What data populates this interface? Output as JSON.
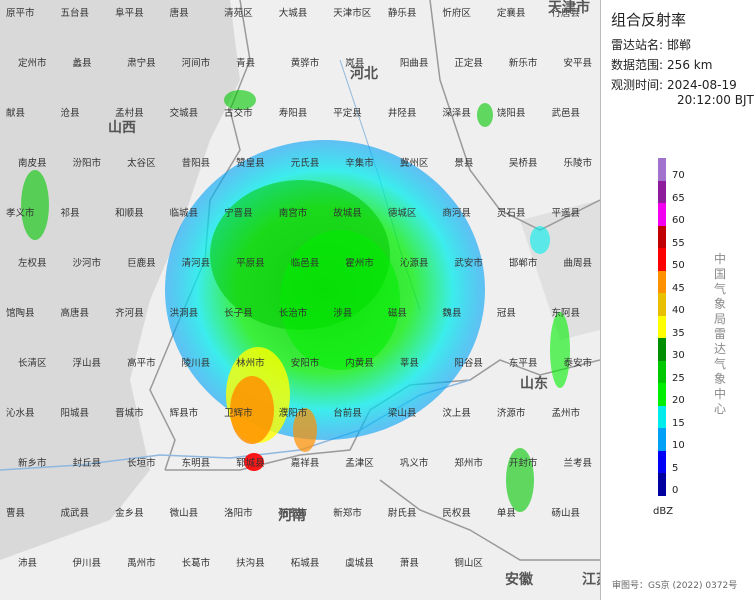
{
  "title": "组合反射率",
  "info": {
    "station_label": "雷达站名:",
    "station_value": "邯郸",
    "range_label": "数据范围:",
    "range_value": "256 km",
    "time_label": "观测时间:",
    "time_date": "2024-08-19",
    "time_clock": "20:12:00 BJT"
  },
  "legend": {
    "unit": "dBZ",
    "levels": [
      {
        "label": "70",
        "color": "#a173cc"
      },
      {
        "label": "65",
        "color": "#8e1c9c"
      },
      {
        "label": "60",
        "color": "#f300f1"
      },
      {
        "label": "55",
        "color": "#c10000"
      },
      {
        "label": "50",
        "color": "#ff0000"
      },
      {
        "label": "45",
        "color": "#ff9000"
      },
      {
        "label": "40",
        "color": "#e8c000"
      },
      {
        "label": "35",
        "color": "#ffff00"
      },
      {
        "label": "30",
        "color": "#008f00"
      },
      {
        "label": "25",
        "color": "#00c800"
      },
      {
        "label": "20",
        "color": "#00ef00"
      },
      {
        "label": "15",
        "color": "#00ecec"
      },
      {
        "label": "10",
        "color": "#00a0f6"
      },
      {
        "label": "5",
        "color": "#0000f6"
      },
      {
        "label": "0",
        "color": "#0000a0"
      }
    ]
  },
  "watermark": "中国气象局雷达气象中心",
  "review_number": "审图号：GS京 (2022) 0372号",
  "map": {
    "provinces": [
      "山西",
      "河北",
      "山东",
      "河南",
      "天津市",
      "安徽",
      "江苏"
    ],
    "cities": [
      "原平市",
      "五台县",
      "阜平县",
      "唐县",
      "清苑区",
      "大城县",
      "天津市区",
      "静乐县",
      "忻府区",
      "定襄县",
      "行唐县",
      "定州市",
      "蠡县",
      "肃宁县",
      "河间市",
      "青县",
      "黄骅市",
      "岚县",
      "阳曲县",
      "正定县",
      "新乐市",
      "安平县",
      "献县",
      "沧县",
      "孟村县",
      "交城县",
      "古交市",
      "寿阳县",
      "平定县",
      "井陉县",
      "深泽县",
      "饶阳县",
      "武邑县",
      "南皮县",
      "汾阳市",
      "太谷区",
      "昔阳县",
      "赞皇县",
      "元氏县",
      "辛集市",
      "冀州区",
      "景县",
      "吴桥县",
      "乐陵市",
      "孝义市",
      "祁县",
      "和顺县",
      "临城县",
      "宁晋县",
      "南宫市",
      "故城县",
      "德城区",
      "商河县",
      "灵石县",
      "平遥县",
      "左权县",
      "沙河市",
      "巨鹿县",
      "清河县",
      "平原县",
      "临邑县",
      "霍州市",
      "沁源县",
      "武安市",
      "邯郸市",
      "曲周县",
      "馆陶县",
      "高唐县",
      "齐河县",
      "洪洞县",
      "长子县",
      "长治市",
      "涉县",
      "磁县",
      "魏县",
      "冠县",
      "东阿县",
      "长清区",
      "浮山县",
      "高平市",
      "陵川县",
      "林州市",
      "安阳市",
      "内黄县",
      "莘县",
      "阳谷县",
      "东平县",
      "泰安市",
      "沁水县",
      "阳城县",
      "晋城市",
      "辉县市",
      "卫辉市",
      "濮阳市",
      "台前县",
      "梁山县",
      "汶上县",
      "济源市",
      "孟州市",
      "新乡市",
      "封丘县",
      "长垣市",
      "东明县",
      "郓城县",
      "嘉祥县",
      "孟津区",
      "巩义市",
      "郑州市",
      "开封市",
      "兰考县",
      "曹县",
      "成武县",
      "金乡县",
      "微山县",
      "洛阳市",
      "新密市",
      "新郑市",
      "尉氏县",
      "民权县",
      "单县",
      "砀山县",
      "沛县",
      "伊川县",
      "禹州市",
      "长葛市",
      "扶沟县",
      "柘城县",
      "虞城县",
      "萧县",
      "铜山区"
    ],
    "legend_note": ""
  }
}
